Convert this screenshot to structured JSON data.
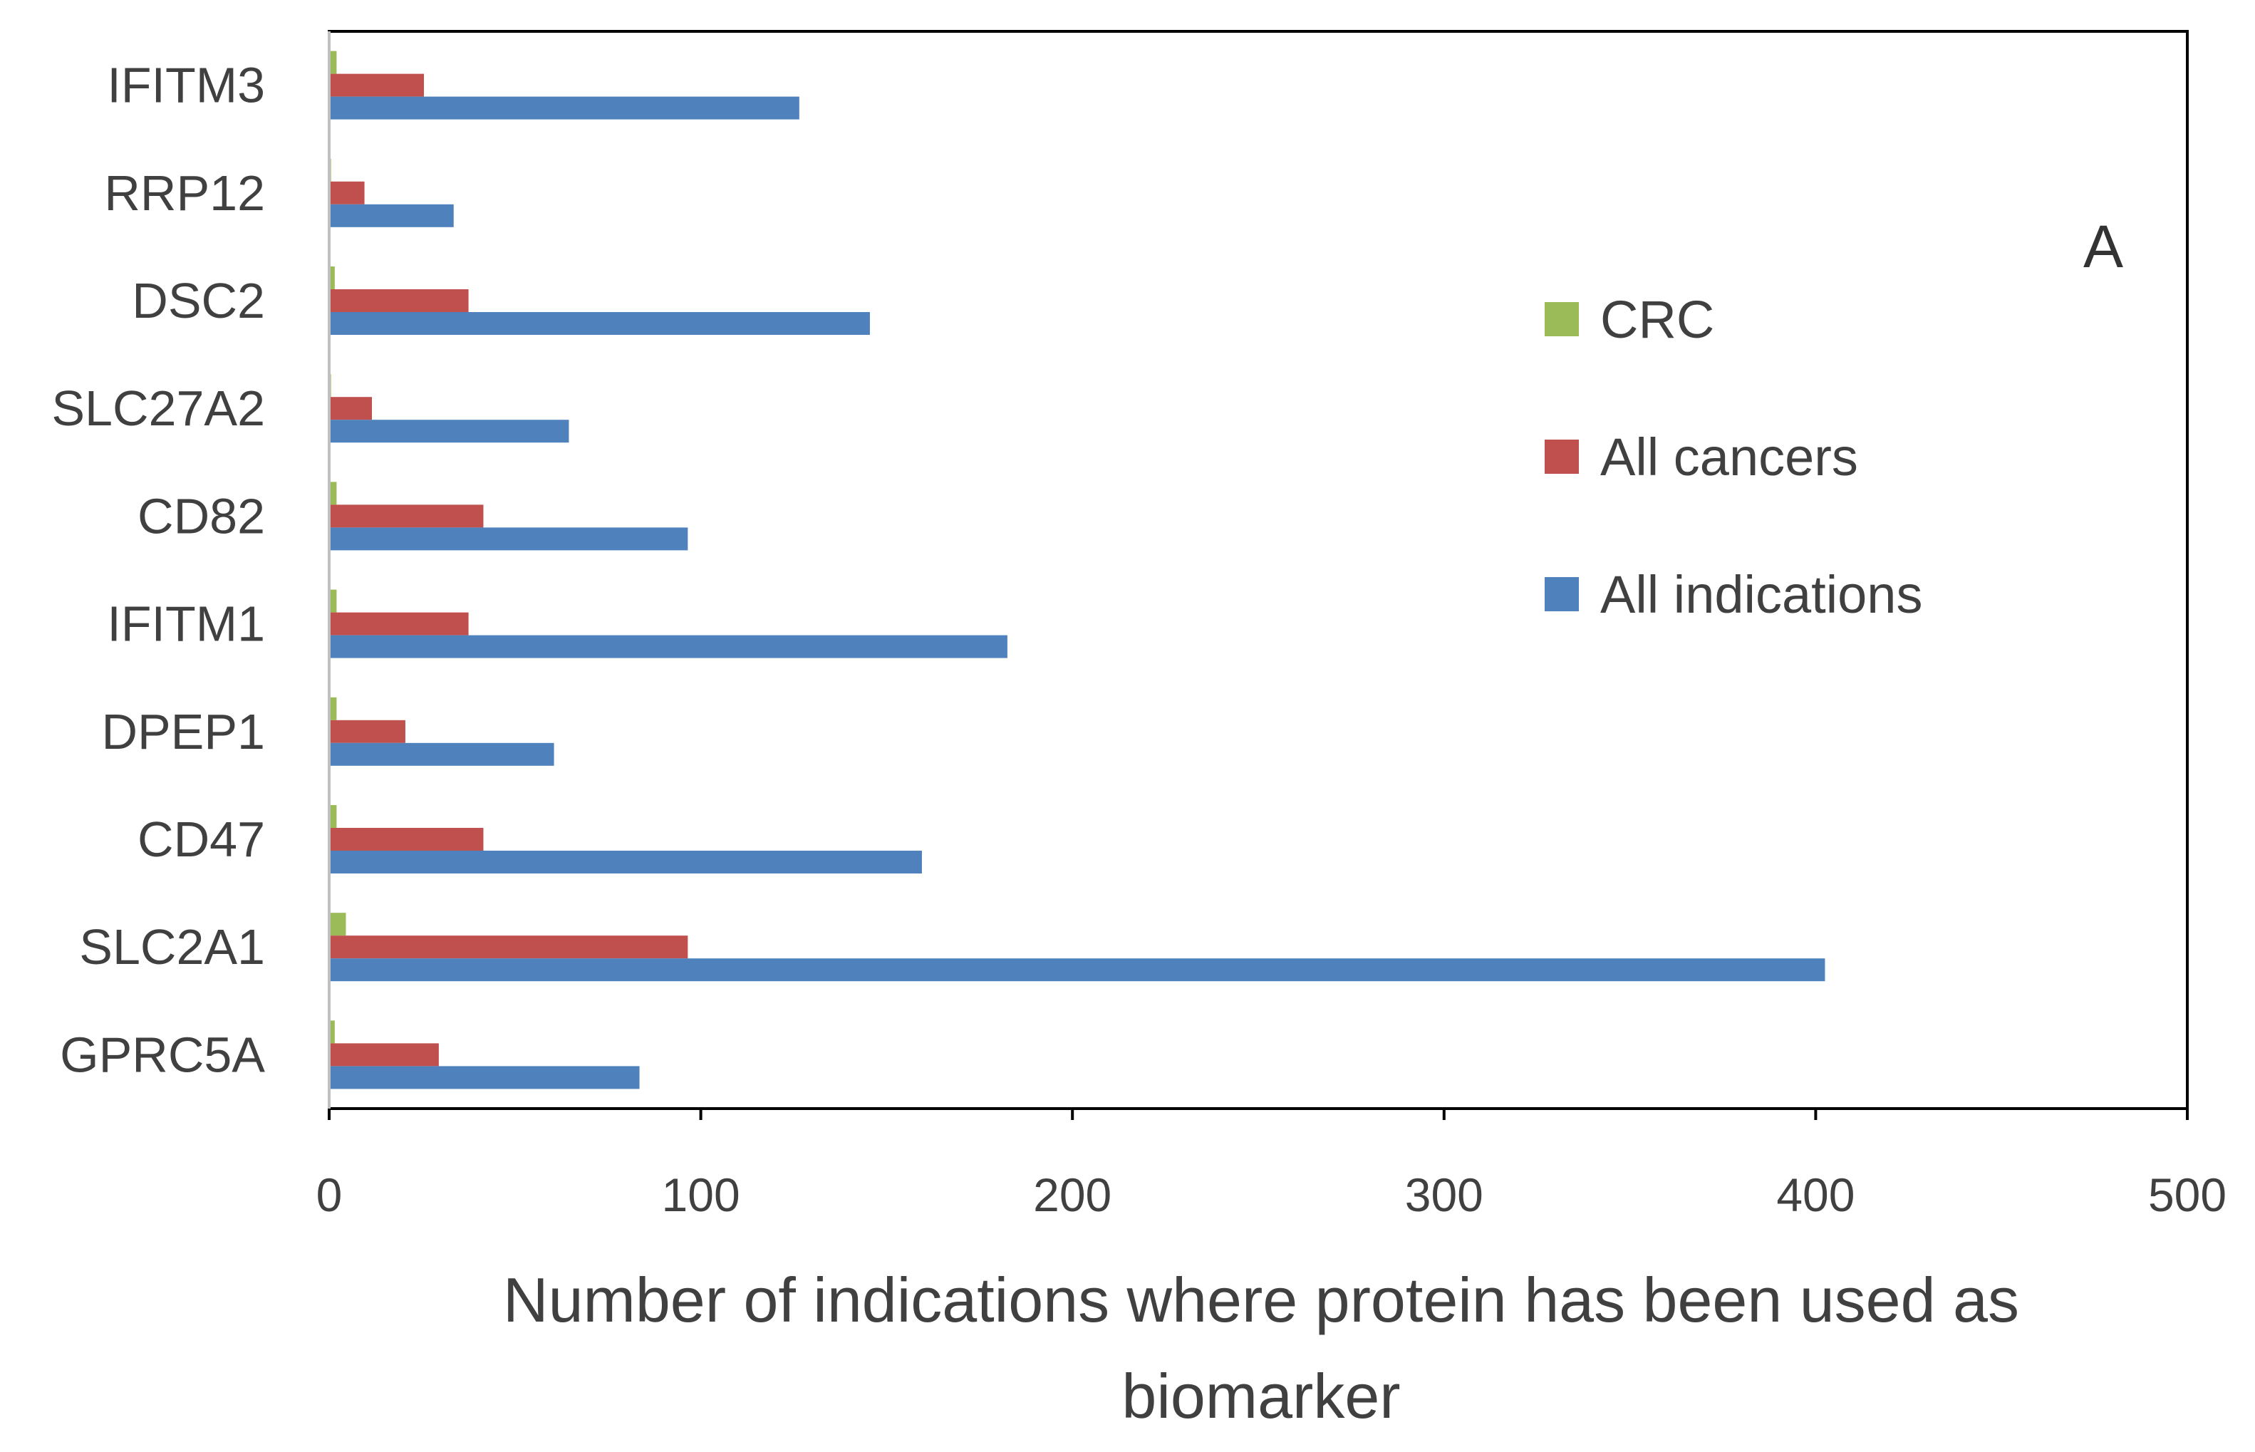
{
  "chart_data": {
    "type": "bar",
    "orientation": "horizontal",
    "panel_label": "A",
    "title": "",
    "xlabel_lines": [
      "Number of indications where protein has been used as",
      "biomarker"
    ],
    "ylabel": "",
    "xlim": [
      0,
      500
    ],
    "x_ticks": [
      "0",
      "100",
      "200",
      "300",
      "400",
      "500"
    ],
    "grid": false,
    "legend_position": "right",
    "categories": [
      "IFITM3",
      "RRP12",
      "DSC2",
      "SLC27A2",
      "CD82",
      "IFITM1",
      "DPEP1",
      "CD47",
      "SLC2A1",
      "GPRC5A"
    ],
    "series": [
      {
        "name": "CRC",
        "color": "#9bbb59",
        "values": [
          2,
          0.5,
          1.5,
          0.5,
          2,
          2,
          2,
          2,
          4.5,
          1.5
        ]
      },
      {
        "name": "All cancers",
        "color": "#c0504d",
        "values": [
          25.5,
          9.5,
          37.5,
          11.5,
          41.5,
          37.5,
          20.5,
          41.5,
          96.5,
          29.5
        ]
      },
      {
        "name": "All indications",
        "color": "#4f81bd",
        "values": [
          126.5,
          33.5,
          145.5,
          64.5,
          96.5,
          182.5,
          60.5,
          159.5,
          402.5,
          83.5
        ]
      }
    ],
    "legend_order": [
      "CRC",
      "All cancers",
      "All indications"
    ]
  }
}
